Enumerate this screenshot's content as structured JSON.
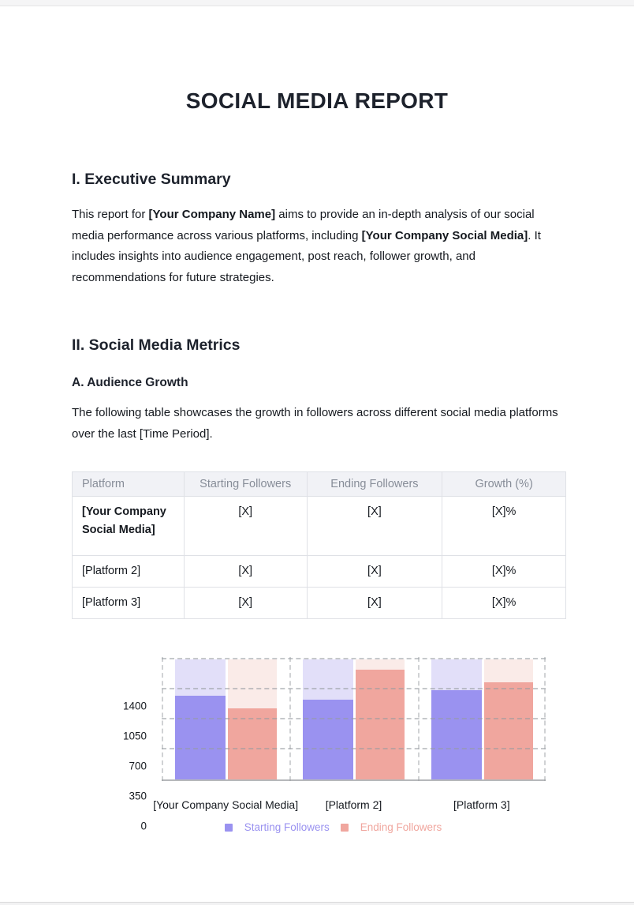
{
  "page": {
    "title": "SOCIAL MEDIA REPORT"
  },
  "sections": {
    "executive_summary": {
      "heading": "I. Executive Summary",
      "paragraph_segments": [
        {
          "text": "This report for ",
          "bold": false
        },
        {
          "text": "[Your Company Name]",
          "bold": true
        },
        {
          "text": " aims to provide an in-depth analysis of our social media performance across various platforms, including ",
          "bold": false
        },
        {
          "text": "[Your Company Social Media]",
          "bold": true
        },
        {
          "text": ". It includes insights into audience engagement, post reach, follower growth, and recommendations for future strategies.",
          "bold": false
        }
      ]
    },
    "social_media_metrics": {
      "heading": "II. Social Media Metrics",
      "subsection_heading": "A. Audience Growth",
      "subsection_paragraph": "The following table showcases the growth in followers across different social media platforms over the last [Time Period]."
    }
  },
  "table": {
    "headers": [
      "Platform",
      "Starting Followers",
      "Ending Followers",
      "Growth (%)"
    ],
    "rows": [
      {
        "cells": [
          "[Your Company Social Media]",
          "[X]",
          "[X]",
          "[X]%"
        ],
        "bold_first": true
      },
      {
        "cells": [
          "[Platform 2]",
          "[X]",
          "[X]",
          "[X]%"
        ],
        "bold_first": false
      },
      {
        "cells": [
          "[Platform 3]",
          "[X]",
          "[X]",
          "[X]%"
        ],
        "bold_first": false
      }
    ]
  },
  "chart_data": {
    "type": "bar",
    "title": "",
    "xlabel": "",
    "ylabel": "",
    "categories": [
      "[Your Company Social Media]",
      "[Platform 2]",
      "[Platform 3]"
    ],
    "series": [
      {
        "name": "Starting Followers",
        "color": "#9a92f0",
        "track_color": "#e2dff9",
        "values": [
          975,
          930,
          1045
        ]
      },
      {
        "name": "Ending Followers",
        "color": "#f0a69e",
        "track_color": "#faebe8",
        "values": [
          835,
          1285,
          1135
        ]
      }
    ],
    "yticks": [
      0,
      350,
      700,
      1050,
      1400
    ],
    "ylim": [
      0,
      1400
    ],
    "background_tracks_to": 1400,
    "grid": "dashed-horizontal-and-category-separators",
    "legend_position": "bottom",
    "axis_text_color": "#15191f",
    "baseline_color": "#b6b8ba"
  }
}
